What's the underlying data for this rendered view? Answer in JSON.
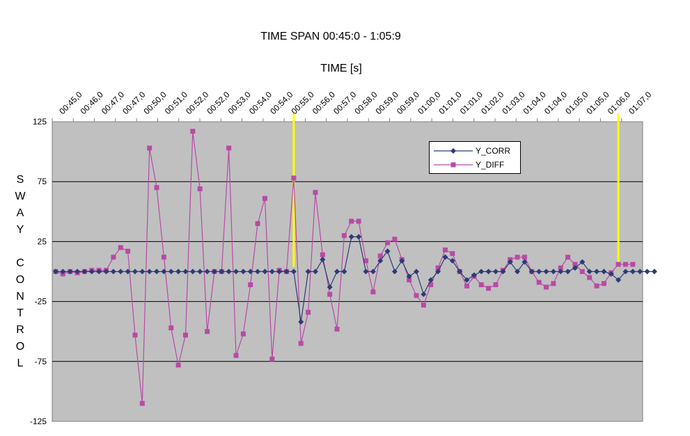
{
  "chart_data": {
    "type": "line",
    "title": "TIME SPAN 00:45:0 - 1:05:9",
    "xlabel": "TIME [s]",
    "ylabel": "SWAY CONTROL",
    "ylim": [
      -125,
      125
    ],
    "yticks": [
      125,
      75,
      25,
      -25,
      -75,
      -125
    ],
    "grid": true,
    "legend_position": "top-right",
    "x_tick_labels": [
      "00:45,0",
      "00:46,0",
      "00:47,0",
      "00:47,0",
      "00:50,0",
      "00:51,0",
      "00:52,0",
      "00:52,0",
      "00:53,0",
      "00:54,0",
      "00:54,0",
      "00:55,0",
      "00:56,0",
      "00:57,0",
      "00:58,0",
      "00:59,0",
      "00:59,0",
      "01:00,0",
      "01:01,0",
      "01:01,0",
      "01:02,0",
      "01:03,0",
      "01:04,0",
      "01:04,0",
      "01:05,0",
      "01:05,0",
      "01:06,0",
      "01:07,0"
    ],
    "markers": [
      {
        "index": 33,
        "color": "#ffff00"
      },
      {
        "index": 78,
        "color": "#ffff00"
      }
    ],
    "series": [
      {
        "name": "Y_CORR",
        "color": "#2d3a78",
        "marker": "diamond",
        "values": [
          0,
          0,
          0,
          0,
          0,
          0,
          0,
          0,
          0,
          0,
          0,
          0,
          0,
          0,
          0,
          0,
          0,
          0,
          0,
          0,
          0,
          0,
          0,
          0,
          0,
          0,
          0,
          0,
          0,
          0,
          0,
          0,
          0,
          0,
          -42,
          0,
          0,
          10,
          -13,
          0,
          0,
          29,
          29,
          0,
          0,
          9,
          17,
          0,
          9,
          -4,
          0,
          -19,
          -7,
          0,
          12,
          9,
          0,
          -7,
          -3,
          0,
          0,
          0,
          0,
          8,
          0,
          8,
          0,
          0,
          0,
          0,
          0,
          0,
          3,
          8,
          0,
          0,
          0,
          -2,
          -7,
          0,
          0,
          0,
          0,
          0
        ]
      },
      {
        "name": "Y_DIFF",
        "color": "#b84aa6",
        "marker": "square",
        "values": [
          0,
          -2,
          0,
          -1,
          0,
          1,
          1,
          1,
          12,
          20,
          17,
          -53,
          -110,
          103,
          70,
          12,
          -47,
          -78,
          -53,
          117,
          69,
          -50,
          0,
          0,
          103,
          -70,
          -52,
          -11,
          40,
          61,
          -73,
          1,
          0,
          78,
          -60,
          -34,
          66,
          14,
          -19,
          -48,
          30,
          42,
          42,
          9,
          -17,
          13,
          24,
          27,
          10,
          -7,
          -20,
          -28,
          -11,
          3,
          18,
          15,
          0,
          -12,
          -4,
          -11,
          -14,
          -11,
          1,
          10,
          12,
          12,
          0,
          -9,
          -13,
          -10,
          3,
          12,
          6,
          0,
          -5,
          -12,
          -10,
          -1,
          6,
          6,
          6
        ]
      }
    ]
  }
}
